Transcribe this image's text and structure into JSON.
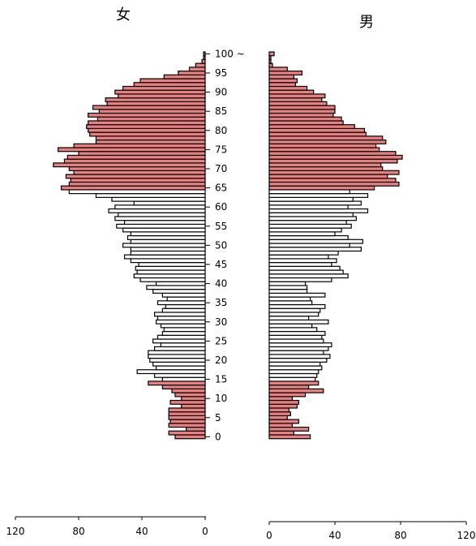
{
  "chart_data": {
    "type": "bar",
    "orientation": "horizontal-population-pyramid",
    "panels": [
      {
        "name": "女",
        "side": "left"
      },
      {
        "name": "男",
        "side": "right"
      }
    ],
    "age_labels": [
      "100 ~",
      "95",
      "90",
      "85",
      "80",
      "75",
      "70",
      "65",
      "60",
      "55",
      "50",
      "45",
      "40",
      "35",
      "30",
      "25",
      "20",
      "15",
      "10",
      "5",
      "0"
    ],
    "xlim": [
      0,
      120
    ],
    "x_ticks_female": [
      "120",
      "80",
      "40",
      "0"
    ],
    "x_ticks_male": [
      "0",
      "40",
      "80",
      "120"
    ],
    "highlight_color": "#e88080",
    "plain_color": "#ffffff",
    "highlight_ranges": [
      [
        0,
        14
      ],
      [
        65,
        100
      ]
    ],
    "age_groups": [
      "0",
      "1",
      "2",
      "3",
      "4",
      "5",
      "6",
      "7",
      "8",
      "9",
      "10",
      "11",
      "12",
      "13",
      "14",
      "15",
      "16",
      "17",
      "18",
      "19",
      "20",
      "21",
      "22",
      "23",
      "24",
      "25",
      "26",
      "27",
      "28",
      "29",
      "30",
      "31",
      "32",
      "33",
      "34",
      "35",
      "36",
      "37",
      "38",
      "39",
      "40",
      "41",
      "42",
      "43",
      "44",
      "45",
      "46",
      "47",
      "48",
      "49",
      "50",
      "51",
      "52",
      "53",
      "54",
      "55",
      "56",
      "57",
      "58",
      "59",
      "60",
      "61",
      "62",
      "63",
      "64",
      "65",
      "66",
      "67",
      "68",
      "69",
      "70",
      "71",
      "72",
      "73",
      "74",
      "75",
      "76",
      "77",
      "78",
      "79",
      "80",
      "81",
      "82",
      "83",
      "84",
      "85",
      "86",
      "87",
      "88",
      "89",
      "90",
      "91",
      "92",
      "93",
      "94",
      "95",
      "96",
      "97",
      "98",
      "99",
      "100 ~"
    ],
    "female": [
      19,
      23,
      12,
      23,
      22,
      23,
      23,
      23,
      15,
      22,
      15,
      19,
      21,
      27,
      36,
      27,
      32,
      43,
      31,
      33,
      35,
      36,
      36,
      32,
      28,
      33,
      30,
      27,
      26,
      28,
      31,
      30,
      32,
      27,
      25,
      30,
      24,
      27,
      33,
      37,
      31,
      41,
      45,
      43,
      44,
      42,
      47,
      51,
      47,
      47,
      52,
      47,
      49,
      47,
      52,
      56,
      51,
      57,
      55,
      61,
      57,
      45,
      59,
      69,
      86,
      91,
      86,
      85,
      88,
      83,
      86,
      96,
      89,
      87,
      80,
      93,
      83,
      69,
      69,
      73,
      74,
      75,
      74,
      68,
      74,
      67,
      71,
      62,
      63,
      55,
      57,
      52,
      45,
      41,
      26,
      17,
      10,
      6,
      2,
      1,
      1
    ],
    "male": [
      25,
      15,
      24,
      14,
      18,
      11,
      13,
      12,
      17,
      18,
      14,
      22,
      33,
      24,
      30,
      28,
      29,
      30,
      32,
      31,
      35,
      37,
      33,
      36,
      38,
      33,
      32,
      34,
      29,
      26,
      36,
      24,
      30,
      31,
      34,
      26,
      25,
      34,
      23,
      23,
      22,
      38,
      48,
      45,
      43,
      38,
      41,
      36,
      42,
      56,
      49,
      57,
      48,
      40,
      44,
      50,
      47,
      53,
      51,
      60,
      48,
      56,
      51,
      60,
      49,
      64,
      79,
      77,
      72,
      79,
      69,
      68,
      78,
      81,
      77,
      67,
      65,
      71,
      69,
      59,
      58,
      52,
      45,
      44,
      39,
      40,
      40,
      35,
      32,
      34,
      27,
      23,
      16,
      17,
      15,
      20,
      11,
      2,
      1,
      1,
      3
    ]
  }
}
